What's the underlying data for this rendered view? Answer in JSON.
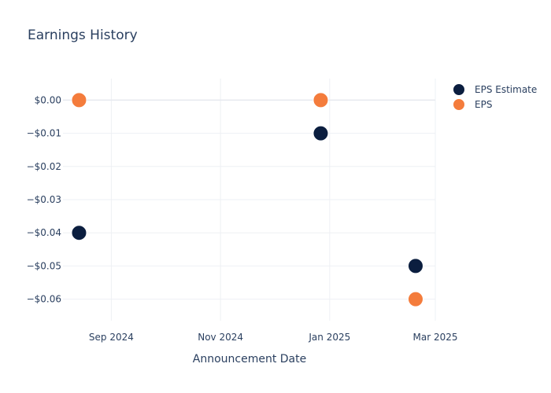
{
  "chart_data": {
    "type": "scatter",
    "title": "Earnings History",
    "xlabel": "Announcement Date",
    "ylabel": "",
    "x_ticks": [
      {
        "date": "2024-09-01",
        "label": "Sep 2024"
      },
      {
        "date": "2024-11-01",
        "label": "Nov 2024"
      },
      {
        "date": "2025-01-01",
        "label": "Jan 2025"
      },
      {
        "date": "2025-03-01",
        "label": "Mar 2025"
      }
    ],
    "y_ticks": [
      {
        "value": 0.0,
        "label": "$0.00"
      },
      {
        "value": -0.01,
        "label": "−$0.01"
      },
      {
        "value": -0.02,
        "label": "−$0.02"
      },
      {
        "value": -0.03,
        "label": "−$0.03"
      },
      {
        "value": -0.04,
        "label": "−$0.04"
      },
      {
        "value": -0.05,
        "label": "−$0.05"
      },
      {
        "value": -0.06,
        "label": "−$0.06"
      }
    ],
    "xlim": [
      "2024-08-05",
      "2025-03-01"
    ],
    "ylim": [
      -0.0665,
      0.0065
    ],
    "grid": true,
    "legend_position": "top-right",
    "series": [
      {
        "name": "EPS Estimate",
        "color": "#0b1e3f",
        "points": [
          {
            "x": "2024-08-14",
            "y": -0.04
          },
          {
            "x": "2024-12-27",
            "y": -0.01
          },
          {
            "x": "2025-02-18",
            "y": -0.05
          }
        ]
      },
      {
        "name": "EPS",
        "color": "#f47c3c",
        "points": [
          {
            "x": "2024-08-14",
            "y": 0.0
          },
          {
            "x": "2024-12-27",
            "y": 0.0
          },
          {
            "x": "2025-02-18",
            "y": -0.06
          }
        ]
      }
    ]
  }
}
